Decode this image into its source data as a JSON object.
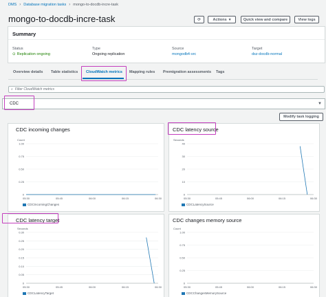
{
  "breadcrumb": [
    "DMS",
    "Database migration tasks",
    "mongo-to-docdb-incre-task"
  ],
  "page_title": "mongo-to-docdb-incre-task",
  "header_buttons": {
    "refresh_icon": "refresh-icon",
    "actions": "Actions",
    "quick_view": "Quick view and compare",
    "view_logs": "View logs"
  },
  "summary": {
    "title": "Summary",
    "status_label": "Status",
    "status_value": "Replication ongoing",
    "type_label": "Type",
    "type_value": "Ongoing replication",
    "source_label": "Source",
    "source_value": "mongodb4-src",
    "target_label": "Target",
    "target_value": "dsz-docdb-normal"
  },
  "tabs": [
    "Overview details",
    "Table statistics",
    "CloudWatch metrics",
    "Mapping rules",
    "Premigration assessments",
    "Tags"
  ],
  "active_tab": "CloudWatch metrics",
  "filter_placeholder": "Filter CloudWatch metrics",
  "selected_metric_group": "CDC",
  "modify_button": "Modify task logging",
  "highlight_color": "#c33dbd",
  "charts": [
    {
      "title": "CDC incoming changes",
      "unit": "Count",
      "yticks": [
        "1.00",
        "0.75",
        "0.50",
        "0.25",
        "0"
      ],
      "ymax": 1.0,
      "xticks": [
        "05:30",
        "05:45",
        "06:00",
        "06:15",
        "06:30"
      ],
      "legend": "CDCIncomingChanges",
      "points": [
        [
          0,
          0
        ],
        [
          0.9,
          0
        ],
        [
          0.98,
          0
        ]
      ]
    },
    {
      "title": "CDC latency source",
      "unit": "Seconds",
      "yticks": [
        "40",
        "30",
        "20",
        "10",
        "0"
      ],
      "ymax": 40,
      "xticks": [
        "05:30",
        "05:45",
        "06:00",
        "06:15",
        "06:30"
      ],
      "legend": "CDCLatencySource",
      "points": [
        [
          0.893,
          38
        ],
        [
          0.95,
          0
        ]
      ]
    },
    {
      "title": "CDC latency target",
      "unit": "Seconds",
      "yticks": [
        "0.30",
        "0.25",
        "0.20",
        "0.15",
        "0.10",
        "0.05",
        "0"
      ],
      "ymax": 0.3,
      "xticks": [
        "05:30",
        "05:45",
        "06:00",
        "06:15",
        "06:30"
      ],
      "legend": "CDCLatencyTarget",
      "points": [
        [
          0.91,
          0.27
        ],
        [
          0.97,
          0
        ]
      ]
    },
    {
      "title": "CDC changes memory source",
      "unit": "Count",
      "yticks": [
        "1.00",
        "0.75",
        "0.50",
        "0.25",
        "0"
      ],
      "ymax": 1.0,
      "xticks": [
        "05:30",
        "05:45",
        "06:00",
        "06:15",
        "06:30"
      ],
      "legend": "CDCChangesMemorySource",
      "points": []
    }
  ]
}
